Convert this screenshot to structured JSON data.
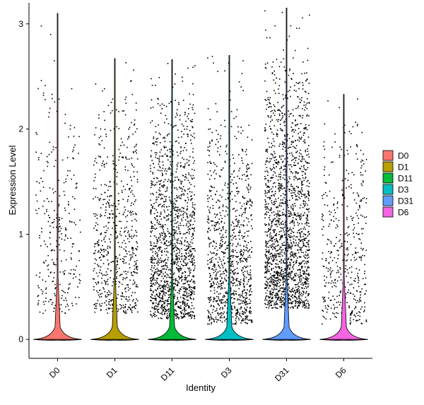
{
  "chart_data": {
    "type": "violin",
    "title": "",
    "xlabel": "Identity",
    "ylabel": "Expression Level",
    "ylim": [
      -0.18,
      3.2
    ],
    "yticks": [
      0,
      1,
      2,
      3
    ],
    "categories": [
      "D0",
      "D1",
      "D11",
      "D3",
      "D31",
      "D6"
    ],
    "legend": {
      "position": "right",
      "entries": [
        {
          "label": "D0",
          "color": "#F8766D"
        },
        {
          "label": "D1",
          "color": "#B79F00"
        },
        {
          "label": "D11",
          "color": "#00BA38"
        },
        {
          "label": "D3",
          "color": "#00BFC4"
        },
        {
          "label": "D31",
          "color": "#619CFF"
        },
        {
          "label": "D6",
          "color": "#F564E3"
        }
      ]
    },
    "series": [
      {
        "category": "D0",
        "color": "#F8766D",
        "max": 3.1,
        "violin_halfwidth_at_zero": 0.42,
        "points": 300,
        "point_min": 0.25,
        "point_max": 2.5
      },
      {
        "category": "D1",
        "color": "#B79F00",
        "max": 2.67,
        "violin_halfwidth_at_zero": 0.42,
        "points": 650,
        "point_min": 0.25,
        "point_max": 2.3
      },
      {
        "category": "D11",
        "color": "#00BA38",
        "max": 2.66,
        "violin_halfwidth_at_zero": 0.42,
        "points": 1500,
        "point_min": 0.2,
        "point_max": 2.3
      },
      {
        "category": "D3",
        "color": "#00BFC4",
        "max": 2.7,
        "violin_halfwidth_at_zero": 0.42,
        "points": 1000,
        "point_min": 0.15,
        "point_max": 2.1
      },
      {
        "category": "D31",
        "color": "#619CFF",
        "max": 3.15,
        "violin_halfwidth_at_zero": 0.42,
        "points": 1800,
        "point_min": 0.3,
        "point_max": 2.6
      },
      {
        "category": "D6",
        "color": "#F564E3",
        "max": 2.33,
        "violin_halfwidth_at_zero": 0.42,
        "points": 450,
        "point_min": 0.15,
        "point_max": 2.15
      }
    ]
  }
}
